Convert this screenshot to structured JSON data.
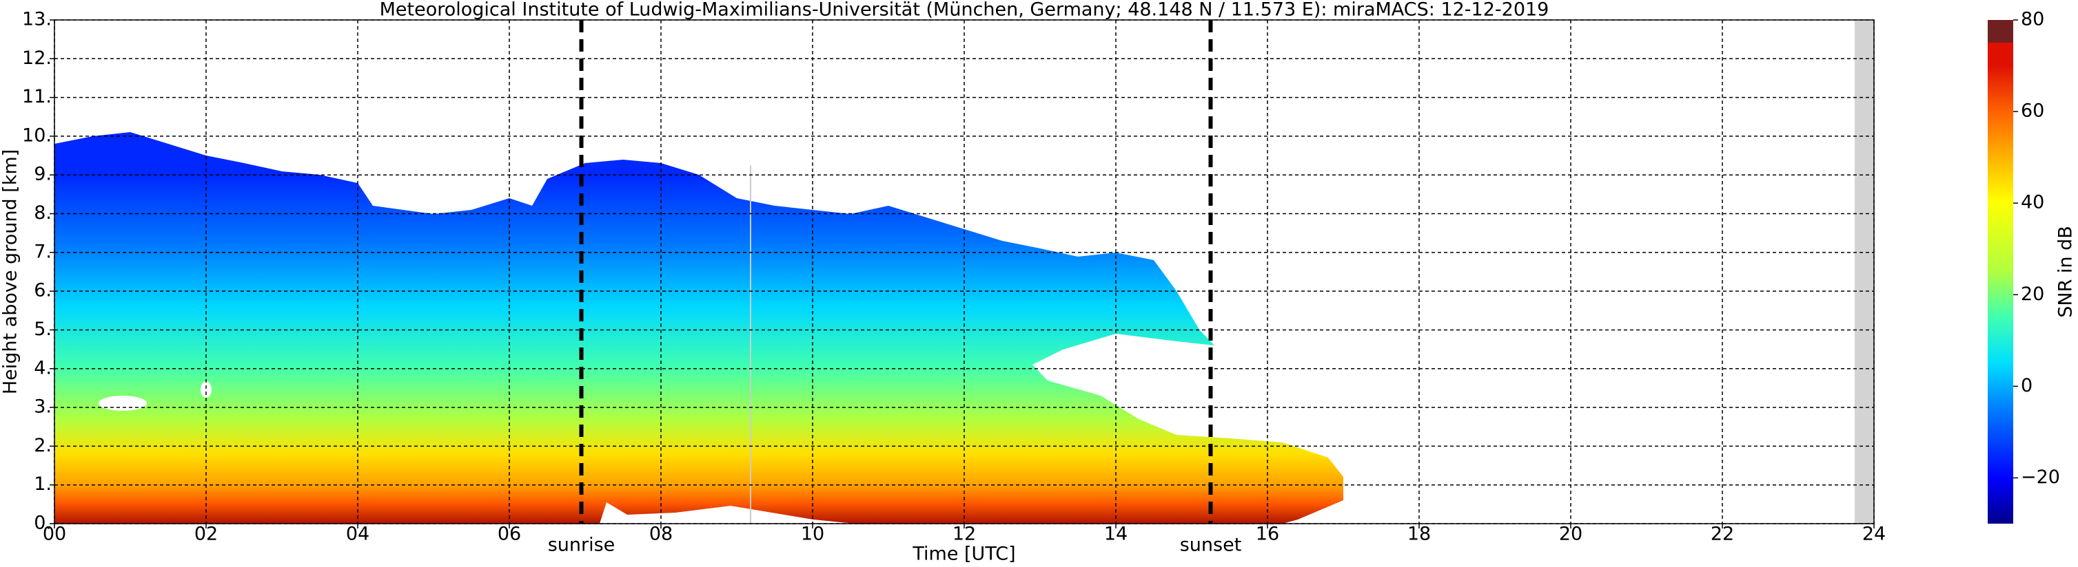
{
  "chart_data": {
    "type": "radar-timeheight",
    "title": "Meteorological Institute of Ludwig-Maximilians-Universität (München, Germany; 48.148 N / 11.573 E):    miraMACS: 12-12-2019",
    "xlabel": "Time [UTC]",
    "ylabel": "Height above ground [km]",
    "xlim": [
      0,
      24
    ],
    "xticks": [
      {
        "value": 0,
        "label": "00"
      },
      {
        "value": 2,
        "label": "02"
      },
      {
        "value": 4,
        "label": "04"
      },
      {
        "value": 6,
        "label": "06"
      },
      {
        "value": 8,
        "label": "08"
      },
      10,
      12,
      14,
      16,
      18,
      20,
      22,
      24
    ],
    "ylim": [
      0,
      13
    ],
    "yticks": [
      {
        "value": 0,
        "label": "0."
      },
      {
        "value": 1,
        "label": "1."
      },
      {
        "value": 2,
        "label": "2."
      },
      {
        "value": 3,
        "label": "3."
      },
      {
        "value": 4,
        "label": "4."
      },
      {
        "value": 5,
        "label": "5."
      },
      {
        "value": 6,
        "label": "6."
      },
      {
        "value": 7,
        "label": "7."
      },
      {
        "value": 8,
        "label": "8."
      },
      {
        "value": 9,
        "label": "9."
      },
      {
        "value": 10,
        "label": "10."
      },
      {
        "value": 11,
        "label": "11."
      },
      {
        "value": 12,
        "label": "12."
      },
      {
        "value": 13,
        "label": "13."
      }
    ],
    "grid": true,
    "annotations": [
      {
        "text": "sunrise",
        "x": 6.95
      },
      {
        "text": "sunset",
        "x": 15.25
      }
    ],
    "colorbar": {
      "label": "SNR in dB",
      "lim": [
        -30,
        80
      ],
      "ticks": [
        {
          "value": -20,
          "label": "−20"
        },
        0,
        20,
        40,
        60,
        80
      ]
    }
  }
}
